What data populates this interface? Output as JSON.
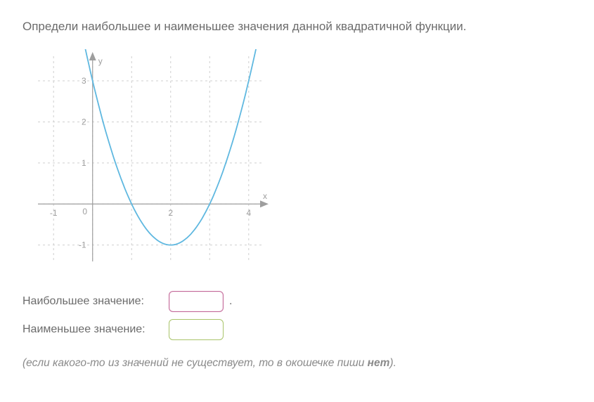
{
  "question": "Определи наибольшее и наименьшее значения данной квадратичной функции.",
  "chart": {
    "type": "line",
    "background_color": "#ffffff",
    "grid_color": "#cfcfcf",
    "axis_color": "#9e9e9e",
    "curve_color": "#5fb8e0",
    "label_color": "#9e9e9e",
    "x_label": "x",
    "y_label": "y",
    "xlim": [
      -1.4,
      4.4
    ],
    "ylim": [
      -1.4,
      3.6
    ],
    "x_ticks": [
      -1,
      0,
      1,
      2,
      3,
      4
    ],
    "y_ticks": [
      -1,
      0,
      1,
      2,
      3
    ],
    "x_tick_labels": [
      "-1",
      "0",
      "",
      "2",
      "",
      "4"
    ],
    "y_tick_labels": [
      "-1",
      "0",
      "1",
      "2",
      "3"
    ],
    "curve": {
      "a": 1,
      "h": 2,
      "k": -1,
      "note": "y = (x-2)^2 - 1"
    }
  },
  "answers": {
    "max_label": "Наибольшее значение:",
    "min_label": "Наименьшее значение:",
    "max_value": "",
    "min_value": "",
    "max_border_color": "#c46a9a",
    "min_border_color": "#a9c46a",
    "period": "."
  },
  "hint": {
    "prefix": "(если какого-то из значений не существует, то в окошечке пиши ",
    "bold": "нет",
    "suffix": ")."
  }
}
